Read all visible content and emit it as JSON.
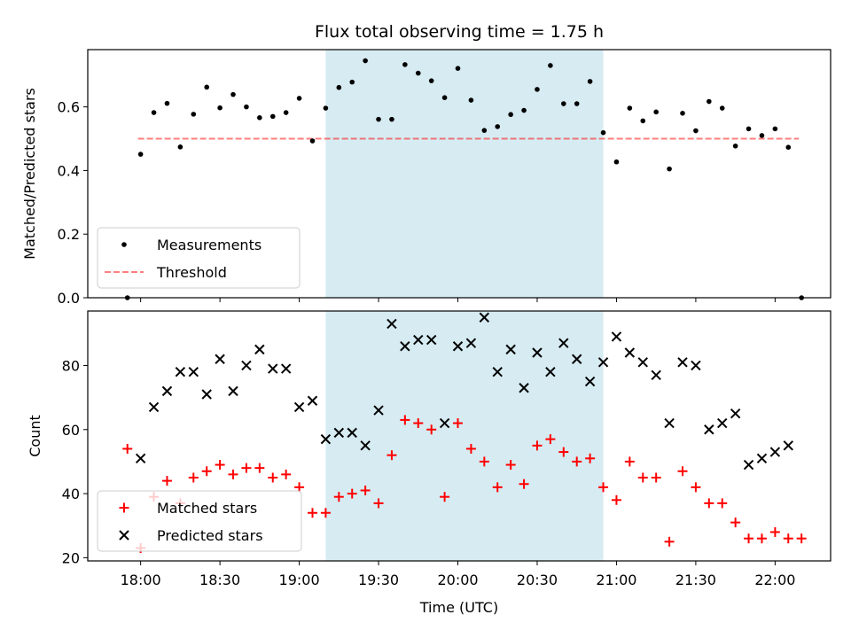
{
  "figure": {
    "title": "Flux total observing time = 1.75 h",
    "colors": {
      "shade": "#add8e6",
      "threshold": "#ff0000",
      "matched": "#ff0000",
      "predicted": "#000000",
      "measurement": "#000000"
    }
  },
  "chart_data": [
    {
      "type": "scatter",
      "ylabel": "Matched/Predicted stars",
      "ylim": [
        0,
        0.78
      ],
      "yticks": [
        "0.0",
        "0.2",
        "0.4",
        "0.6"
      ],
      "ytick_values": [
        0.0,
        0.2,
        0.4,
        0.6
      ],
      "shaded_span": {
        "start": "19:10",
        "end": "20:55"
      },
      "legend": {
        "position": "lower-left",
        "entries": [
          "Measurements",
          "Threshold"
        ]
      },
      "threshold": {
        "name": "Threshold",
        "value": 0.5,
        "x_start": "17:59",
        "x_end": "22:09"
      },
      "series": [
        {
          "name": "Measurements",
          "x": [
            "17:55",
            "18:00",
            "18:05",
            "18:10",
            "18:15",
            "18:20",
            "18:25",
            "18:30",
            "18:35",
            "18:40",
            "18:45",
            "18:50",
            "18:55",
            "19:00",
            "19:05",
            "19:10",
            "19:15",
            "19:20",
            "19:25",
            "19:30",
            "19:35",
            "19:40",
            "19:45",
            "19:50",
            "19:55",
            "20:00",
            "20:05",
            "20:10",
            "20:15",
            "20:20",
            "20:25",
            "20:30",
            "20:35",
            "20:40",
            "20:45",
            "20:50",
            "20:55",
            "21:00",
            "21:05",
            "21:10",
            "21:15",
            "21:20",
            "21:25",
            "21:30",
            "21:35",
            "21:40",
            "21:45",
            "21:50",
            "21:55",
            "22:00",
            "22:05",
            "22:10"
          ],
          "y": [
            0.0,
            0.451,
            0.582,
            0.611,
            0.474,
            0.577,
            0.662,
            0.597,
            0.639,
            0.6,
            0.566,
            0.57,
            0.582,
            0.627,
            0.493,
            0.596,
            0.661,
            0.678,
            0.745,
            0.561,
            0.561,
            0.733,
            0.706,
            0.682,
            0.629,
            0.721,
            0.621,
            0.526,
            0.538,
            0.576,
            0.589,
            0.655,
            0.73,
            0.61,
            0.61,
            0.68,
            0.519,
            0.427,
            0.596,
            0.556,
            0.584,
            0.405,
            0.58,
            0.525,
            0.617,
            0.596,
            0.477,
            0.531,
            0.51,
            0.531,
            0.473,
            0.0
          ]
        }
      ]
    },
    {
      "type": "scatter",
      "ylabel": "Count",
      "xlabel": "Time (UTC)",
      "ylim": [
        19,
        97
      ],
      "yticks": [
        "20",
        "40",
        "60",
        "80"
      ],
      "ytick_values": [
        20,
        40,
        60,
        80
      ],
      "xlim": [
        "17:40",
        "22:21"
      ],
      "xticks": [
        "18:00",
        "18:30",
        "19:00",
        "19:30",
        "20:00",
        "20:30",
        "21:00",
        "21:30",
        "22:00"
      ],
      "shaded_span": {
        "start": "19:10",
        "end": "20:55"
      },
      "legend": {
        "position": "lower-left",
        "entries": [
          "Matched stars",
          "Predicted stars"
        ]
      },
      "series": [
        {
          "name": "Matched stars",
          "x": [
            "17:55",
            "18:00",
            "18:05",
            "18:10",
            "18:15",
            "18:20",
            "18:25",
            "18:30",
            "18:35",
            "18:40",
            "18:45",
            "18:50",
            "18:55",
            "19:00",
            "19:05",
            "19:10",
            "19:15",
            "19:20",
            "19:25",
            "19:30",
            "19:35",
            "19:40",
            "19:45",
            "19:50",
            "19:55",
            "20:00",
            "20:05",
            "20:10",
            "20:15",
            "20:20",
            "20:25",
            "20:30",
            "20:35",
            "20:40",
            "20:45",
            "20:50",
            "20:55",
            "21:00",
            "21:05",
            "21:10",
            "21:15",
            "21:20",
            "21:25",
            "21:30",
            "21:35",
            "21:40",
            "21:45",
            "21:50",
            "21:55",
            "22:00",
            "22:05",
            "22:10"
          ],
          "y": [
            54,
            23,
            39,
            44,
            37,
            45,
            47,
            49,
            46,
            48,
            48,
            45,
            46,
            42,
            34,
            34,
            39,
            40,
            41,
            37,
            52,
            63,
            62,
            60,
            39,
            62,
            54,
            50,
            42,
            49,
            43,
            55,
            57,
            53,
            50,
            51,
            42,
            38,
            50,
            45,
            45,
            25,
            47,
            42,
            37,
            37,
            31,
            26,
            26,
            28,
            26,
            26
          ]
        },
        {
          "name": "Predicted stars",
          "x": [
            "18:00",
            "18:05",
            "18:10",
            "18:15",
            "18:20",
            "18:25",
            "18:30",
            "18:35",
            "18:40",
            "18:45",
            "18:50",
            "18:55",
            "19:00",
            "19:05",
            "19:10",
            "19:15",
            "19:20",
            "19:25",
            "19:30",
            "19:35",
            "19:40",
            "19:45",
            "19:50",
            "19:55",
            "20:00",
            "20:05",
            "20:10",
            "20:15",
            "20:20",
            "20:25",
            "20:30",
            "20:35",
            "20:40",
            "20:45",
            "20:50",
            "20:55",
            "21:00",
            "21:05",
            "21:10",
            "21:15",
            "21:20",
            "21:25",
            "21:30",
            "21:35",
            "21:40",
            "21:45",
            "21:50",
            "21:55",
            "22:00",
            "22:05"
          ],
          "y": [
            51,
            67,
            72,
            78,
            78,
            71,
            82,
            72,
            80,
            85,
            79,
            79,
            67,
            69,
            57,
            59,
            59,
            55,
            66,
            93,
            86,
            88,
            88,
            62,
            86,
            87,
            95,
            78,
            85,
            73,
            84,
            78,
            87,
            82,
            75,
            81,
            89,
            84,
            81,
            77,
            62,
            81,
            80,
            60,
            62,
            65,
            49,
            51,
            53,
            55
          ]
        }
      ]
    }
  ]
}
